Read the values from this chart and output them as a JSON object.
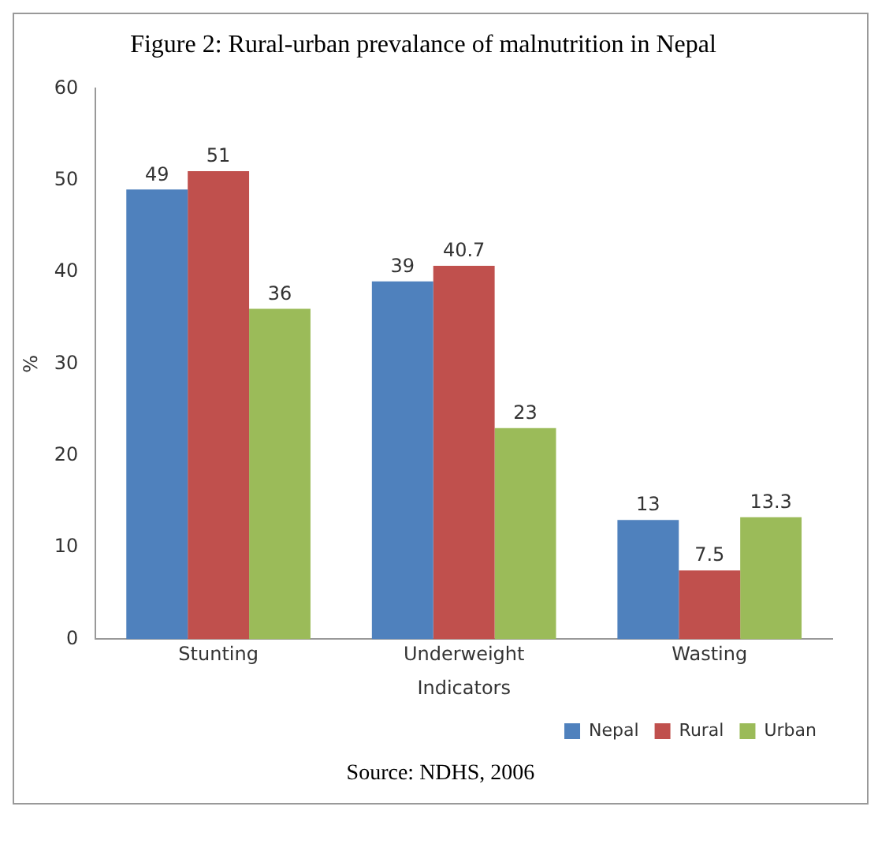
{
  "chart_data": {
    "type": "bar",
    "title": "Figure 2: Rural-urban prevalance of malnutrition in Nepal",
    "xlabel": "Indicators",
    "ylabel": "%",
    "categories": [
      "Stunting",
      "Underweight",
      "Wasting"
    ],
    "series": [
      {
        "name": "Nepal",
        "color": "#4f81bd",
        "values": [
          49,
          39,
          13
        ]
      },
      {
        "name": "Rural",
        "color": "#c0504d",
        "values": [
          51,
          40.7,
          7.5
        ]
      },
      {
        "name": "Urban",
        "color": "#9bbb59",
        "values": [
          36,
          23,
          13.3
        ]
      }
    ],
    "ylim": [
      0,
      60
    ],
    "yticks": [
      0,
      10,
      20,
      30,
      40,
      50,
      60
    ],
    "grid": false,
    "legend": "bottom right",
    "data_labels": true,
    "annotations": [
      "Source: NDHS, 2006"
    ]
  }
}
